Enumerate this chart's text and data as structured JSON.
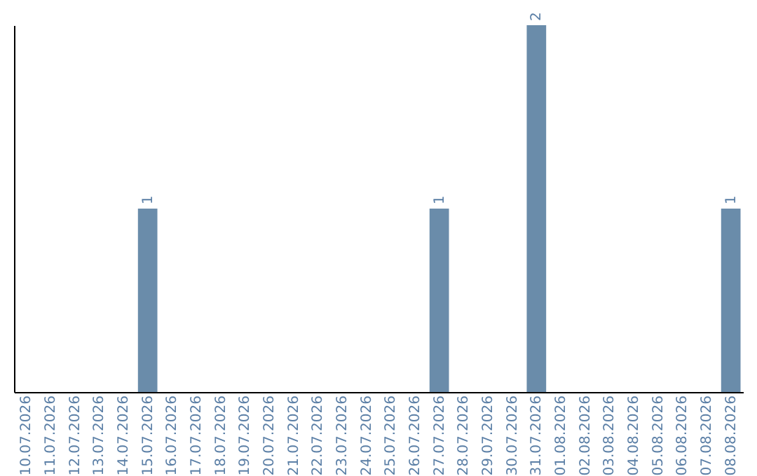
{
  "chart_data": {
    "type": "bar",
    "categories": [
      "10.07.2026",
      "11.07.2026",
      "12.07.2026",
      "13.07.2026",
      "14.07.2026",
      "15.07.2026",
      "16.07.2026",
      "17.07.2026",
      "18.07.2026",
      "19.07.2026",
      "20.07.2026",
      "21.07.2026",
      "22.07.2026",
      "23.07.2026",
      "24.07.2026",
      "25.07.2026",
      "26.07.2026",
      "27.07.2026",
      "28.07.2026",
      "29.07.2026",
      "30.07.2026",
      "31.07.2026",
      "01.08.2026",
      "02.08.2026",
      "03.08.2026",
      "04.08.2026",
      "05.08.2026",
      "06.08.2026",
      "07.08.2026",
      "08.08.2026"
    ],
    "values": [
      0,
      0,
      0,
      0,
      0,
      1,
      0,
      0,
      0,
      0,
      0,
      0,
      0,
      0,
      0,
      0,
      0,
      1,
      0,
      0,
      0,
      2,
      0,
      0,
      0,
      0,
      0,
      0,
      0,
      1
    ],
    "value_labels": [
      null,
      null,
      null,
      null,
      null,
      "1",
      null,
      null,
      null,
      null,
      null,
      null,
      null,
      null,
      null,
      null,
      null,
      "1",
      null,
      null,
      null,
      "2",
      null,
      null,
      null,
      null,
      null,
      null,
      null,
      "1"
    ],
    "color": "#6a8caa",
    "ylim": [
      0,
      2
    ],
    "grid": false
  }
}
